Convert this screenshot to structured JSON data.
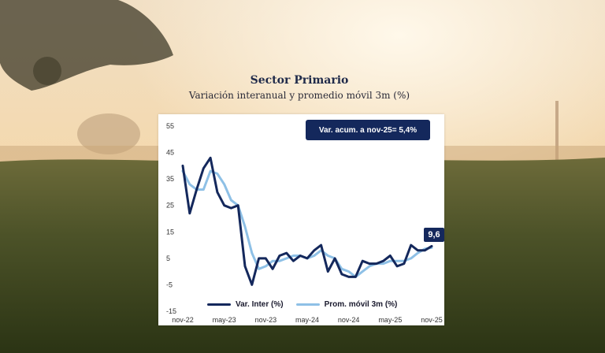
{
  "title": "Sector Primario",
  "subtitle": "Variación interanual y promedio móvil 3m (%)",
  "note": "Var. acum. a nov-25= 5,4%",
  "colors": {
    "primary": "#14285c",
    "secondary": "#8ec0e6"
  },
  "chart_data": {
    "type": "line",
    "x": [
      "nov-22",
      "dic-22",
      "ene-23",
      "feb-23",
      "mar-23",
      "abr-23",
      "may-23",
      "jun-23",
      "jul-23",
      "ago-23",
      "sep-23",
      "oct-23",
      "nov-23",
      "dic-23",
      "ene-24",
      "feb-24",
      "mar-24",
      "abr-24",
      "may-24",
      "jun-24",
      "jul-24",
      "ago-24",
      "sep-24",
      "oct-24",
      "nov-24",
      "dic-24",
      "ene-25",
      "feb-25",
      "mar-25",
      "abr-25",
      "may-25",
      "jun-25",
      "jul-25",
      "ago-25",
      "sep-25",
      "oct-25",
      "nov-25"
    ],
    "xticks": [
      "nov-22",
      "may-23",
      "nov-23",
      "may-24",
      "nov-24",
      "may-25",
      "nov-25"
    ],
    "yticks": [
      55,
      45,
      35,
      25,
      15,
      5,
      -5,
      -15
    ],
    "ylim": [
      -15,
      55
    ],
    "series": [
      {
        "name": "Var. Inter (%)",
        "values": [
          40,
          22,
          31,
          39,
          43,
          30,
          25,
          24,
          25,
          2,
          -5,
          5,
          5,
          1,
          6,
          7,
          4,
          6,
          5,
          8,
          10,
          0,
          5,
          -1,
          -2,
          -2,
          4,
          3,
          3,
          4,
          6,
          2,
          3,
          10,
          8,
          8,
          9.6
        ]
      },
      {
        "name": "Prom. móvil 3m (%)",
        "values": [
          38,
          33,
          31,
          31,
          38,
          37,
          33,
          27,
          25,
          17,
          7,
          1,
          2,
          4,
          4,
          5,
          6,
          6,
          5,
          6,
          8,
          6,
          5,
          1,
          0,
          -2,
          0,
          2,
          3,
          3,
          4,
          4,
          4,
          5,
          7,
          8.6,
          9
        ]
      }
    ],
    "last_value_label": "9,6"
  }
}
